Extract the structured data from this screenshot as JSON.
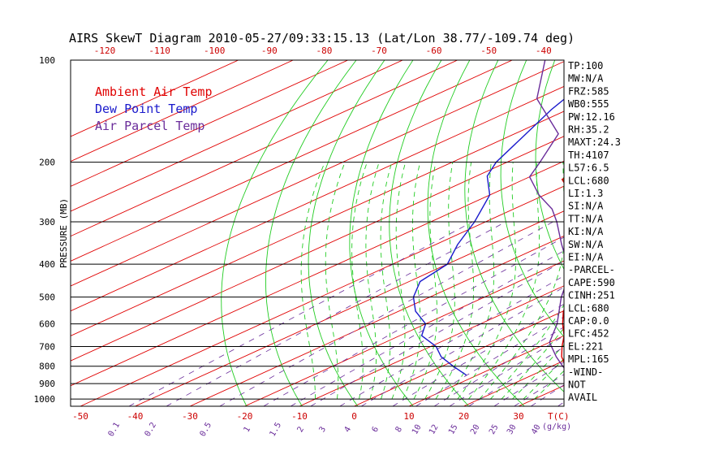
{
  "chart_data": {
    "type": "skewt",
    "title": "AIRS SkewT Diagram 2010-05-27/09:33:15.13 (Lat/Lon 38.77/-109.74 deg)",
    "yaxis_label": "PRESSURE (MB)",
    "pressure_ticks": [
      "100",
      "200",
      "300",
      "400",
      "500",
      "600",
      "700",
      "800",
      "900",
      "1000"
    ],
    "top_temp_ticks": [
      "-120",
      "-110",
      "-100",
      "-90",
      "-80",
      "-70",
      "-60",
      "-50",
      "-40"
    ],
    "bottom_temp_ticks": [
      "-50",
      "-40",
      "-30",
      "-20",
      "-10",
      "0",
      "10",
      "20",
      "30"
    ],
    "bottom_temp_unit": "T(C)",
    "mixing_ratio_ticks": [
      "0.1",
      "0.2",
      "0.5",
      "1",
      "1.5",
      "2",
      "3",
      "4",
      "6",
      "8",
      "10",
      "12",
      "15",
      "20",
      "25",
      "30",
      "40"
    ],
    "mixing_ratio_unit": "(g/kg)",
    "legend": [
      {
        "label": "Ambient Air Temp",
        "color": "#e00000"
      },
      {
        "label": "Dew Point Temp",
        "color": "#1a1acc"
      },
      {
        "label": "Air Parcel Temp",
        "color": "#6a2c9a"
      }
    ],
    "series": [
      {
        "name": "Ambient Air Temp",
        "color": "#e00000",
        "points": [
          [
            840,
            26
          ],
          [
            750,
            18
          ],
          [
            700,
            14
          ],
          [
            650,
            10
          ],
          [
            600,
            5
          ],
          [
            550,
            0
          ],
          [
            500,
            -4
          ],
          [
            450,
            -10
          ],
          [
            400,
            -16
          ],
          [
            350,
            -23
          ],
          [
            300,
            -30
          ],
          [
            275,
            -37
          ],
          [
            250,
            -45
          ],
          [
            225,
            -53
          ],
          [
            200,
            -55
          ],
          [
            180,
            -55
          ],
          [
            160,
            -53
          ],
          [
            140,
            -55
          ],
          [
            120,
            -57
          ],
          [
            100,
            -61
          ]
        ]
      },
      {
        "name": "Dew Point Temp",
        "color": "#1a1acc",
        "points": [
          [
            850,
            8
          ],
          [
            800,
            2
          ],
          [
            750,
            -4
          ],
          [
            700,
            -9
          ],
          [
            650,
            -16
          ],
          [
            600,
            -20
          ],
          [
            550,
            -27
          ],
          [
            500,
            -33
          ],
          [
            450,
            -38
          ],
          [
            400,
            -40
          ],
          [
            350,
            -46
          ],
          [
            300,
            -52
          ],
          [
            250,
            -60
          ],
          [
            220,
            -68
          ],
          [
            200,
            -72
          ],
          [
            170,
            -77
          ],
          [
            140,
            -83
          ],
          [
            120,
            -87
          ],
          [
            100,
            -93
          ]
        ]
      },
      {
        "name": "Air Parcel Temp",
        "color": "#6a2c9a",
        "points": [
          [
            840,
            26
          ],
          [
            800,
            22
          ],
          [
            750,
            17
          ],
          [
            680,
            10
          ],
          [
            600,
            4
          ],
          [
            500,
            -6
          ],
          [
            452,
            -11
          ],
          [
            400,
            -18
          ],
          [
            350,
            -27
          ],
          [
            300,
            -37
          ],
          [
            275,
            -43
          ],
          [
            250,
            -51
          ],
          [
            221,
            -60
          ],
          [
            200,
            -64
          ],
          [
            165,
            -72
          ],
          [
            130,
            -90
          ],
          [
            100,
            -104
          ]
        ]
      }
    ],
    "isotherm_c": [
      -160,
      -150,
      -140,
      -130,
      -120,
      -110,
      -100,
      -90,
      -80,
      -70,
      -60,
      -50,
      -40,
      -30,
      -20,
      -10,
      0,
      10,
      20,
      30,
      40,
      50
    ],
    "mixing_ratio_gkg": [
      0.1,
      0.2,
      0.5,
      1,
      1.5,
      2,
      3,
      4,
      6,
      8,
      10,
      12,
      15,
      20,
      25,
      30,
      40
    ],
    "dry_adiabat_theta_k": [
      250,
      260,
      270,
      280,
      290,
      300,
      310,
      320,
      330,
      340,
      350,
      360,
      370,
      380,
      390,
      400,
      410,
      420,
      430,
      440,
      450,
      460,
      470,
      480,
      490
    ],
    "moist_adiabat_thetaw_c": [
      -10,
      -6,
      -2,
      0,
      2,
      4,
      6,
      8,
      10,
      12,
      14,
      16,
      18,
      20,
      22,
      24,
      26,
      28,
      30
    ],
    "indices": [
      "TP:100",
      "MW:N/A",
      "FRZ:585",
      "WB0:555",
      "PW:12.16",
      "RH:35.2",
      "MAXT:24.3",
      "TH:4107",
      "L57:6.5",
      "LCL:680",
      "LI:1.3",
      "SI:N/A",
      "TT:N/A",
      "KI:N/A",
      "SW:N/A",
      "EI:N/A",
      "-PARCEL-",
      "CAPE:590",
      "CINH:251",
      "LCL:680",
      "CAP:0.0",
      "LFC:452",
      "EL:221",
      "MPL:165",
      "-WIND-",
      "NOT",
      "AVAIL"
    ],
    "grid": true
  }
}
